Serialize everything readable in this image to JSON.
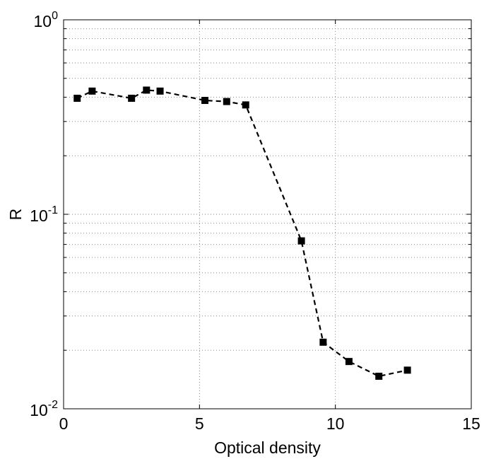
{
  "chart_data": {
    "type": "line",
    "xlabel": "Optical density",
    "ylabel": "R",
    "xlim": [
      0,
      15
    ],
    "ylim": [
      0.01,
      1
    ],
    "yscale": "log",
    "grid": true,
    "x_ticks": [
      0,
      5,
      10,
      15
    ],
    "x_tick_labels": [
      "0",
      "5",
      "10",
      "15"
    ],
    "y_ticks": [
      0.01,
      0.1,
      1
    ],
    "y_tick_labels": [
      {
        "base": "10",
        "exp": "-2"
      },
      {
        "base": "10",
        "exp": "-1"
      },
      {
        "base": "10",
        "exp": "0"
      }
    ],
    "series": [
      {
        "x": [
          0.5,
          1.05,
          2.5,
          3.05,
          3.55,
          5.2,
          6.0,
          6.7,
          8.75,
          9.55,
          10.5,
          11.6,
          12.65
        ],
        "y": [
          0.395,
          0.43,
          0.395,
          0.435,
          0.43,
          0.385,
          0.38,
          0.365,
          0.073,
          0.022,
          0.0175,
          0.0147,
          0.0158
        ],
        "line_style": "dashed",
        "marker": "square",
        "color": "#000000"
      }
    ]
  }
}
